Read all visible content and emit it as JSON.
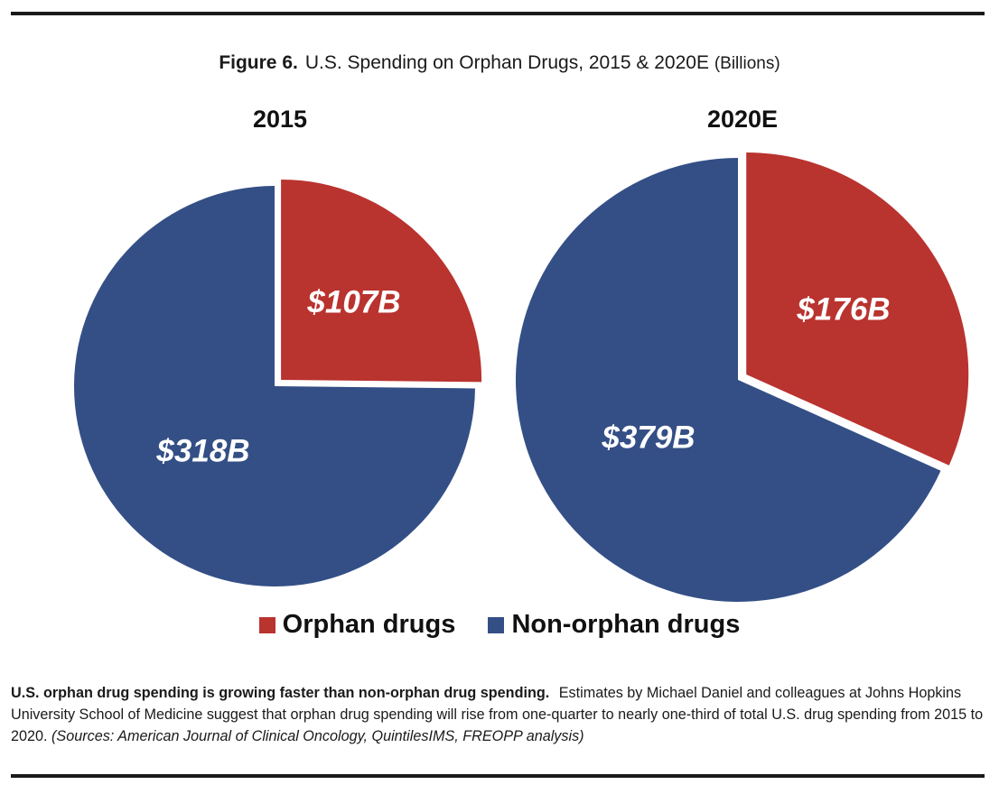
{
  "figure": {
    "label": "Figure 6.",
    "title": "U.S. Spending on Orphan Drugs, 2015 & 2020E",
    "unit": "(Billions)"
  },
  "colors": {
    "orphan": "#b9332f",
    "non_orphan": "#344f86"
  },
  "chart_data": [
    {
      "type": "pie",
      "title": "2015",
      "slices": [
        {
          "name": "Orphan drugs",
          "value": 107,
          "label": "$107B",
          "exploded": true
        },
        {
          "name": "Non-orphan drugs",
          "value": 318,
          "label": "$318B",
          "exploded": false
        }
      ],
      "legend": [
        "Orphan drugs",
        "Non-orphan drugs"
      ],
      "legend_position": "bottom"
    },
    {
      "type": "pie",
      "title": "2020E",
      "slices": [
        {
          "name": "Orphan drugs",
          "value": 176,
          "label": "$176B",
          "exploded": true
        },
        {
          "name": "Non-orphan drugs",
          "value": 379,
          "label": "$379B",
          "exploded": false
        }
      ],
      "legend": [
        "Orphan drugs",
        "Non-orphan drugs"
      ],
      "legend_position": "bottom"
    }
  ],
  "legend": {
    "orphan": "Orphan drugs",
    "non_orphan": "Non-orphan drugs"
  },
  "caption": {
    "bold": "U.S. orphan drug spending is growing faster than non-orphan drug spending.",
    "text": "Estimates by Michael Daniel and colleagues at Johns Hopkins University School of Medicine suggest that orphan drug spending will rise from one-quarter to nearly one-third of total U.S. drug spending from 2015 to 2020.",
    "sources": "(Sources: American Journal of Clinical Oncology, QuintilesIMS, FREOPP analysis)"
  }
}
